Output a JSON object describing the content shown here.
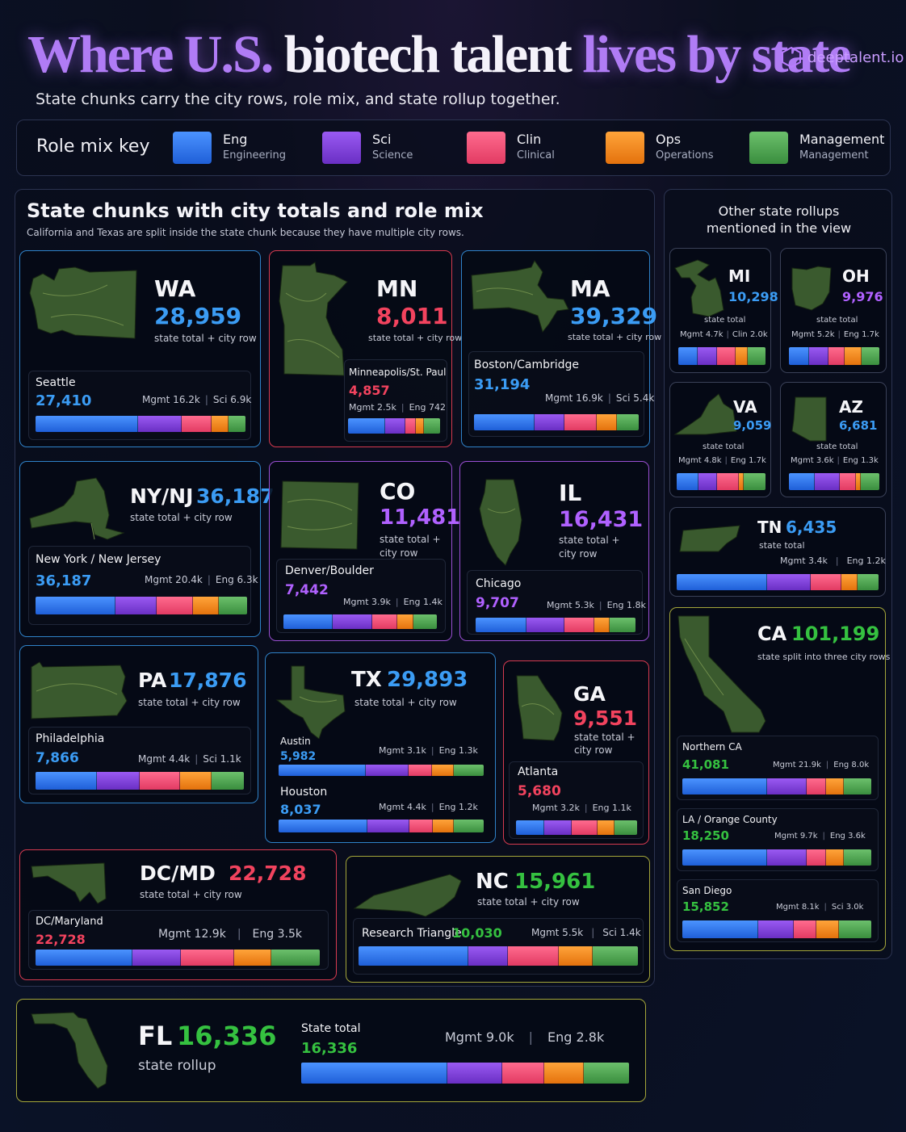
{
  "header": {
    "title_part1": "Where U.S.",
    "title_part2": "biotech talent",
    "title_part3": "lives by state",
    "brand": "deeptalent.io",
    "subtitle": "State chunks carry the city rows, role mix, and state rollup together."
  },
  "key": {
    "title": "Role mix key",
    "items": [
      {
        "abbr": "Eng",
        "name": "Engineering",
        "color": "#2f78f0"
      },
      {
        "abbr": "Sci",
        "name": "Science",
        "color": "#7d43dd"
      },
      {
        "abbr": "Clin",
        "name": "Clinical",
        "color": "#f05278"
      },
      {
        "abbr": "Ops",
        "name": "Operations",
        "color": "#f58a22"
      },
      {
        "abbr": "Management",
        "name": "Management",
        "color": "#4ea853"
      }
    ]
  },
  "main": {
    "title": "State chunks with city totals and role mix",
    "subtitle": "California and Texas are split inside the state chunk because they have multiple city rows."
  },
  "side": {
    "title": "Other state rollups\nmentioned in the view"
  },
  "states": {
    "wa": {
      "abbr": "WA",
      "total": "28,959",
      "label": "state total + city row",
      "city": "Seattle",
      "city_total": "27,410",
      "mix_a": "Mgmt 16.2k",
      "mix_b": "Sci 6.9k",
      "mix": [
        0.42,
        0.18,
        0.12,
        0.07,
        0.07
      ]
    },
    "mn": {
      "abbr": "MN",
      "total": "8,011",
      "label": "state total + city row",
      "city": "Minneapolis/St. Paul",
      "city_total": "4,857",
      "mix_a": "Mgmt 2.5k",
      "mix_b": "Eng 742",
      "mix": [
        0.36,
        0.2,
        0.1,
        0.08,
        0.16
      ]
    },
    "ma": {
      "abbr": "MA",
      "total": "39,329",
      "label": "state total + city row",
      "city": "Boston/Cambridge",
      "city_total": "31,194",
      "mix_a": "Mgmt 16.9k",
      "mix_b": "Sci 5.4k",
      "mix": [
        0.36,
        0.18,
        0.19,
        0.12,
        0.13
      ]
    },
    "nynj": {
      "abbr": "NY/NJ",
      "total": "36,187",
      "label": "state total + city row",
      "city": "New York / New Jersey",
      "city_total": "36,187",
      "mix_a": "Mgmt 20.4k",
      "mix_b": "Eng 6.3k",
      "mix": [
        0.37,
        0.19,
        0.17,
        0.12,
        0.13
      ]
    },
    "co": {
      "abbr": "CO",
      "total": "11,481",
      "label": "state total +\ncity row",
      "city": "Denver/Boulder",
      "city_total": "7,442",
      "mix_a": "Mgmt 3.9k",
      "mix_b": "Eng 1.4k",
      "mix": [
        0.32,
        0.26,
        0.16,
        0.11,
        0.15
      ]
    },
    "il": {
      "abbr": "IL",
      "total": "16,431",
      "label": "state total +\ncity row",
      "city": "Chicago",
      "city_total": "9,707",
      "mix_a": "Mgmt 5.3k",
      "mix_b": "Eng 1.8k",
      "mix": [
        0.33,
        0.25,
        0.19,
        0.1,
        0.17
      ]
    },
    "pa": {
      "abbr": "PA",
      "total": "17,876",
      "label": "state total + city row",
      "city": "Philadelphia",
      "city_total": "7,866",
      "mix_a": "Mgmt 4.4k",
      "mix_b": "Sci 1.1k",
      "mix": [
        0.29,
        0.2,
        0.19,
        0.15,
        0.15
      ]
    },
    "tx": {
      "abbr": "TX",
      "total": "29,893",
      "label": "state total + city row",
      "cities": [
        {
          "name": "Austin",
          "total": "5,982",
          "mix_a": "Mgmt 3.1k",
          "mix_b": "Eng 1.3k",
          "mix": [
            0.41,
            0.2,
            0.11,
            0.1,
            0.14
          ]
        },
        {
          "name": "Houston",
          "total": "8,037",
          "mix_a": "Mgmt 4.4k",
          "mix_b": "Eng 1.2k",
          "mix": [
            0.42,
            0.2,
            0.11,
            0.1,
            0.14
          ]
        }
      ]
    },
    "ga": {
      "abbr": "GA",
      "total": "9,551",
      "label": "state total +\ncity row",
      "city": "Atlanta",
      "city_total": "5,680",
      "mix_a": "Mgmt 3.2k",
      "mix_b": "Eng 1.1k",
      "mix": [
        0.23,
        0.23,
        0.21,
        0.14,
        0.19
      ]
    },
    "dcmd": {
      "abbr": "DC/MD",
      "total": "22,728",
      "label": "state total + city row",
      "city": "DC/Maryland",
      "city_total": "22,728",
      "mix_a": "Mgmt 12.9k",
      "mix_b": "Eng 3.5k",
      "mix": [
        0.34,
        0.17,
        0.19,
        0.13,
        0.17
      ]
    },
    "nc": {
      "abbr": "NC",
      "total": "15,961",
      "label": "state total + city row",
      "city": "Research Triangle",
      "city_total": "10,030",
      "mix_a": "Mgmt 5.5k",
      "mix_b": "Sci 1.4k",
      "mix": [
        0.39,
        0.14,
        0.18,
        0.12,
        0.16
      ]
    },
    "fl": {
      "abbr": "FL",
      "total": "16,336",
      "label": "state rollup",
      "city": "State total",
      "city_total": "16,336",
      "mix_a": "Mgmt 9.0k",
      "mix_b": "Eng 2.8k",
      "mix": [
        0.45,
        0.17,
        0.13,
        0.12,
        0.14
      ]
    }
  },
  "side_states": {
    "mi": {
      "abbr": "MI",
      "total": "10,298",
      "label": "state total",
      "mix_a": "Mgmt 4.7k",
      "mix_b": "Clin 2.0k",
      "mix": [
        0.22,
        0.22,
        0.22,
        0.14,
        0.2
      ]
    },
    "oh": {
      "abbr": "OH",
      "total": "9,976",
      "label": "state total",
      "mix_a": "Mgmt 5.2k",
      "mix_b": "Eng 1.7k",
      "mix": [
        0.22,
        0.22,
        0.18,
        0.18,
        0.2
      ]
    },
    "va": {
      "abbr": "VA",
      "total": "9,059",
      "label": "state total",
      "mix_a": "Mgmt 4.8k",
      "mix_b": "Eng 1.7k",
      "mix": [
        0.24,
        0.2,
        0.24,
        0.05,
        0.24
      ]
    },
    "az": {
      "abbr": "AZ",
      "total": "6,681",
      "label": "state total",
      "mix_a": "Mgmt 3.6k",
      "mix_b": "Eng 1.3k",
      "mix": [
        0.28,
        0.27,
        0.18,
        0.05,
        0.2
      ]
    },
    "tn": {
      "abbr": "TN",
      "total": "6,435",
      "label": "state total",
      "mix_a": "Mgmt 3.4k",
      "mix_b": "Eng 1.2k",
      "mix": [
        0.44,
        0.21,
        0.15,
        0.08,
        0.1
      ]
    },
    "ca": {
      "abbr": "CA",
      "total": "101,199",
      "label": "state split into three city rows",
      "cities": [
        {
          "name": "Northern CA",
          "total": "41,081",
          "mix_a": "Mgmt 21.9k",
          "mix_b": "Eng 8.0k",
          "mix": [
            0.43,
            0.2,
            0.1,
            0.09,
            0.14
          ]
        },
        {
          "name": "LA / Orange County",
          "total": "18,250",
          "mix_a": "Mgmt 9.7k",
          "mix_b": "Eng 3.6k",
          "mix": [
            0.43,
            0.2,
            0.1,
            0.09,
            0.14
          ]
        },
        {
          "name": "San Diego",
          "total": "15,852",
          "mix_a": "Mgmt 8.1k",
          "mix_b": "Sci 3.0k",
          "mix": [
            0.4,
            0.19,
            0.12,
            0.12,
            0.17
          ]
        }
      ]
    }
  }
}
